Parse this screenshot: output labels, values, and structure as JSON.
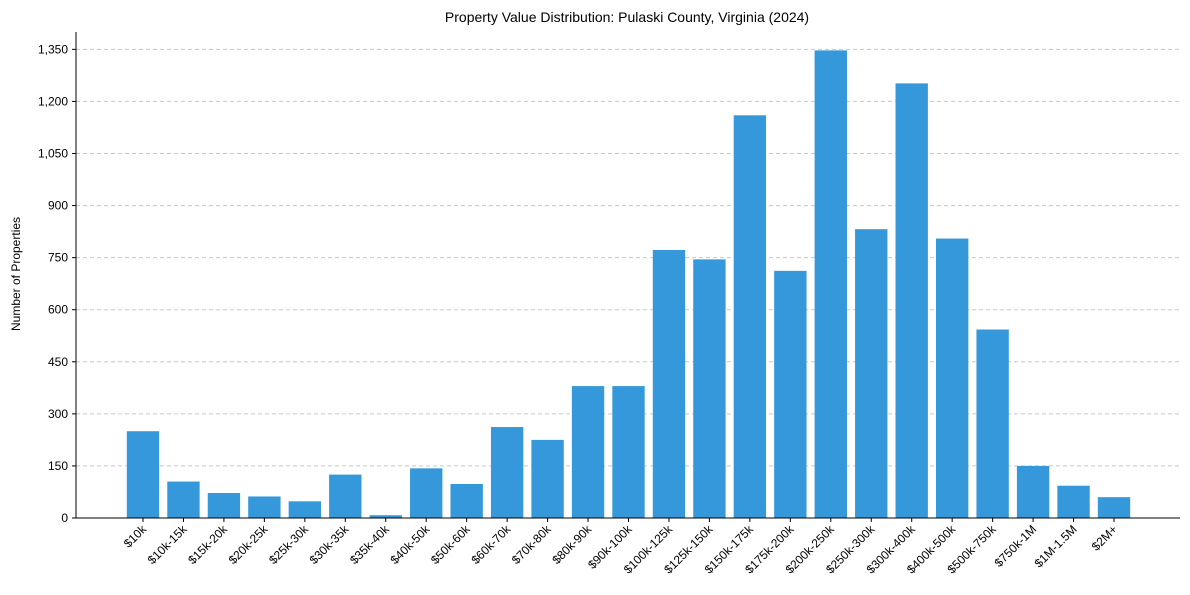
{
  "chart_data": {
    "type": "bar",
    "title": "Property Value Distribution: Pulaski County, Virginia (2024)",
    "xlabel": "",
    "ylabel": "Number of Properties",
    "ylim": [
      0,
      1400
    ],
    "y_ticks": [
      0,
      150,
      300,
      450,
      600,
      750,
      900,
      1050,
      1200,
      1350
    ],
    "y_tick_labels": [
      "0",
      "150",
      "300",
      "450",
      "600",
      "750",
      "900",
      "1,050",
      "1,200",
      "1,350"
    ],
    "grid": "y-dashed",
    "bar_color": "#3498db",
    "categories": [
      "$10k",
      "$10k-15k",
      "$15k-20k",
      "$20k-25k",
      "$25k-30k",
      "$30k-35k",
      "$35k-40k",
      "$40k-50k",
      "$50k-60k",
      "$60k-70k",
      "$70k-80k",
      "$80k-90k",
      "$90k-100k",
      "$100k-125k",
      "$125k-150k",
      "$150k-175k",
      "$175k-200k",
      "$200k-250k",
      "$250k-300k",
      "$300k-400k",
      "$400k-500k",
      "$500k-750k",
      "$750k-1M",
      "$1M-1.5M",
      "$2M+"
    ],
    "values": [
      250,
      105,
      72,
      62,
      48,
      125,
      8,
      143,
      98,
      262,
      225,
      380,
      380,
      772,
      745,
      1160,
      712,
      1347,
      832,
      1252,
      805,
      543,
      150,
      93,
      60
    ]
  }
}
